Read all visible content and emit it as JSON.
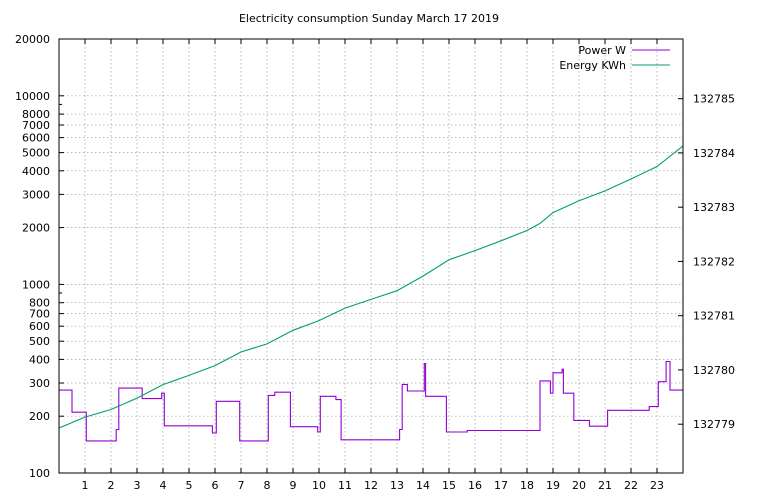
{
  "chart_data": {
    "type": "line",
    "title": "Electricity consumption Sunday March 17 2019",
    "xlabel": "",
    "ylabel": "",
    "x_ticks": [
      1,
      2,
      3,
      4,
      5,
      6,
      7,
      8,
      9,
      10,
      11,
      12,
      13,
      14,
      15,
      16,
      17,
      18,
      19,
      20,
      21,
      22,
      23
    ],
    "xlim": [
      0,
      24
    ],
    "y_left": {
      "scale": "log",
      "ylim": [
        100,
        20000
      ],
      "ticks": [
        100,
        200,
        300,
        400,
        500,
        600,
        700,
        800,
        1000,
        2000,
        3000,
        4000,
        5000,
        6000,
        7000,
        8000,
        10000,
        20000
      ]
    },
    "y_right": {
      "scale": "linear",
      "ylim": [
        132778.1,
        132786.1
      ],
      "ticks": [
        132779,
        132780,
        132781,
        132782,
        132783,
        132784,
        132785
      ]
    },
    "grid": true,
    "legend_position": "top-right",
    "series": [
      {
        "name": "Power W",
        "axis": "left",
        "color": "#9400d3",
        "step": true,
        "points": [
          [
            0,
            275
          ],
          [
            0.5,
            275
          ],
          [
            0.5,
            210
          ],
          [
            1.05,
            210
          ],
          [
            1.05,
            148
          ],
          [
            2.2,
            148
          ],
          [
            2.2,
            170
          ],
          [
            2.3,
            170
          ],
          [
            2.3,
            282
          ],
          [
            3.2,
            282
          ],
          [
            3.2,
            248
          ],
          [
            3.95,
            248
          ],
          [
            3.95,
            265
          ],
          [
            4.05,
            265
          ],
          [
            4.05,
            178
          ],
          [
            5.9,
            178
          ],
          [
            5.9,
            163
          ],
          [
            6.05,
            163
          ],
          [
            6.05,
            240
          ],
          [
            6.95,
            240
          ],
          [
            6.95,
            148
          ],
          [
            8.05,
            148
          ],
          [
            8.05,
            258
          ],
          [
            8.3,
            258
          ],
          [
            8.3,
            268
          ],
          [
            8.9,
            268
          ],
          [
            8.9,
            176
          ],
          [
            9.95,
            176
          ],
          [
            9.95,
            165
          ],
          [
            10.05,
            165
          ],
          [
            10.05,
            255
          ],
          [
            10.65,
            255
          ],
          [
            10.65,
            245
          ],
          [
            10.85,
            245
          ],
          [
            10.85,
            150
          ],
          [
            13.1,
            150
          ],
          [
            13.1,
            170
          ],
          [
            13.2,
            170
          ],
          [
            13.2,
            295
          ],
          [
            13.4,
            295
          ],
          [
            13.4,
            272
          ],
          [
            14.05,
            272
          ],
          [
            14.05,
            380
          ],
          [
            14.1,
            380
          ],
          [
            14.1,
            255
          ],
          [
            14.9,
            255
          ],
          [
            14.9,
            165
          ],
          [
            15.7,
            165
          ],
          [
            15.7,
            168
          ],
          [
            18.5,
            168
          ],
          [
            18.5,
            308
          ],
          [
            18.9,
            308
          ],
          [
            18.9,
            265
          ],
          [
            19.0,
            265
          ],
          [
            19.0,
            340
          ],
          [
            19.35,
            340
          ],
          [
            19.35,
            355
          ],
          [
            19.4,
            355
          ],
          [
            19.4,
            265
          ],
          [
            19.8,
            265
          ],
          [
            19.8,
            190
          ],
          [
            20.4,
            190
          ],
          [
            20.4,
            177
          ],
          [
            21.1,
            177
          ],
          [
            21.1,
            215
          ],
          [
            22.7,
            215
          ],
          [
            22.7,
            225
          ],
          [
            23.05,
            225
          ],
          [
            23.05,
            305
          ],
          [
            23.35,
            305
          ],
          [
            23.35,
            390
          ],
          [
            23.5,
            390
          ],
          [
            23.5,
            275
          ],
          [
            24,
            275
          ]
        ]
      },
      {
        "name": "Energy KWh",
        "axis": "right",
        "color": "#009e73",
        "step": false,
        "points": [
          [
            0,
            132778.93
          ],
          [
            1,
            132779.13
          ],
          [
            2,
            132779.27
          ],
          [
            3,
            132779.48
          ],
          [
            4,
            132779.73
          ],
          [
            5,
            132779.9
          ],
          [
            6,
            132780.08
          ],
          [
            7,
            132780.33
          ],
          [
            8,
            132780.48
          ],
          [
            9,
            132780.73
          ],
          [
            10,
            132780.91
          ],
          [
            11,
            132781.14
          ],
          [
            12,
            132781.3
          ],
          [
            13,
            132781.46
          ],
          [
            14,
            132781.73
          ],
          [
            15,
            132782.03
          ],
          [
            16,
            132782.2
          ],
          [
            17,
            132782.38
          ],
          [
            18,
            132782.57
          ],
          [
            18.5,
            132782.7
          ],
          [
            19,
            132782.9
          ],
          [
            20,
            132783.12
          ],
          [
            21,
            132783.3
          ],
          [
            22,
            132783.52
          ],
          [
            23,
            132783.75
          ],
          [
            24,
            132784.13
          ]
        ]
      }
    ]
  }
}
